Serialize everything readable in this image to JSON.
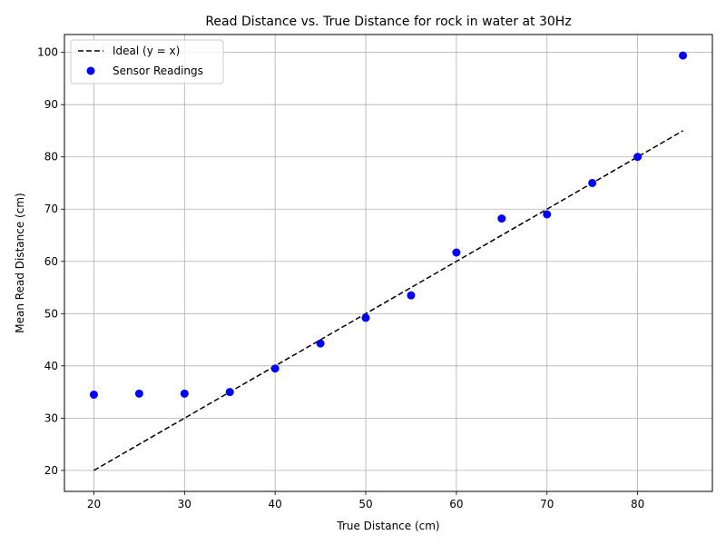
{
  "chart_data": {
    "type": "scatter",
    "title": "Read Distance vs. True Distance for rock in water at 30Hz",
    "xlabel": "True Distance (cm)",
    "ylabel": "Mean Read Distance (cm)",
    "xlim": [
      16.75,
      88.25
    ],
    "ylim": [
      15.98,
      103.42
    ],
    "xticks": [
      20,
      30,
      40,
      50,
      60,
      70,
      80
    ],
    "yticks": [
      20,
      30,
      40,
      50,
      60,
      70,
      80,
      90,
      100
    ],
    "grid": true,
    "legend_position": "top-left",
    "series": [
      {
        "name": "Ideal (y = x)",
        "kind": "line",
        "style": "dashed",
        "color": "#000000",
        "x": [
          20,
          85
        ],
        "y": [
          20,
          85
        ]
      },
      {
        "name": "Sensor Readings",
        "kind": "scatter",
        "color": "#0000ff",
        "x": [
          20,
          25,
          30,
          35,
          40,
          45,
          50,
          55,
          60,
          65,
          70,
          75,
          80,
          85
        ],
        "y": [
          34.5,
          34.7,
          34.7,
          35.0,
          39.5,
          44.3,
          49.2,
          53.5,
          61.7,
          68.2,
          69.0,
          75.0,
          80.0,
          99.4
        ]
      }
    ]
  }
}
